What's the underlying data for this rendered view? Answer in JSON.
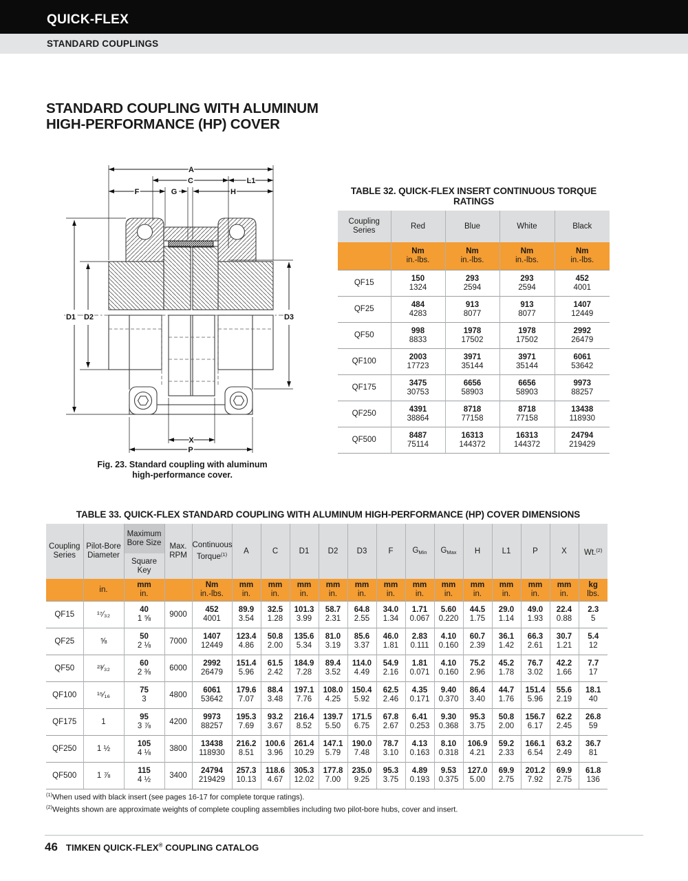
{
  "page": {
    "brand_bar": "QUICK-FLEX",
    "section_bar": "STANDARD COUPLINGS",
    "title_line1": "STANDARD COUPLING WITH ALUMINUM",
    "title_line2": "HIGH-PERFORMANCE (HP) COVER",
    "footnote1_sup": "(1)",
    "footnote1": "When used with black insert (see pages 16-17 for complete torque ratings).",
    "footnote2_sup": "(2)",
    "footnote2": "Weights shown are approximate weights of complete coupling assemblies including two pilot-bore hubs, cover and insert.",
    "footer": {
      "page_number": "46",
      "brand": "TIMKEN QUICK-FLEX",
      "reg": "®",
      "rest": " COUPLING CATALOG"
    }
  },
  "figure": {
    "caption_line1": "Fig. 23. Standard coupling with aluminum",
    "caption_line2": "high-performance cover.",
    "labels": {
      "a": "A",
      "c": "C",
      "l1": "L1",
      "f": "F",
      "g": "G",
      "h": "H",
      "d1": "D1",
      "d2": "D2",
      "d3": "D3",
      "x": "X",
      "p": "P"
    }
  },
  "table32": {
    "title": "TABLE 32. QUICK-FLEX INSERT CONTINUOUS TORQUE RATINGS",
    "col0_header": "Coupling Series",
    "columns": [
      "Red",
      "Blue",
      "White",
      "Black"
    ],
    "unit_top": "Nm",
    "unit_bottom": "in.-lbs.",
    "rows": [
      {
        "series": "QF15",
        "values": [
          [
            "150",
            "1324"
          ],
          [
            "293",
            "2594"
          ],
          [
            "293",
            "2594"
          ],
          [
            "452",
            "4001"
          ]
        ]
      },
      {
        "series": "QF25",
        "values": [
          [
            "484",
            "4283"
          ],
          [
            "913",
            "8077"
          ],
          [
            "913",
            "8077"
          ],
          [
            "1407",
            "12449"
          ]
        ]
      },
      {
        "series": "QF50",
        "values": [
          [
            "998",
            "8833"
          ],
          [
            "1978",
            "17502"
          ],
          [
            "1978",
            "17502"
          ],
          [
            "2992",
            "26479"
          ]
        ]
      },
      {
        "series": "QF100",
        "values": [
          [
            "2003",
            "17723"
          ],
          [
            "3971",
            "35144"
          ],
          [
            "3971",
            "35144"
          ],
          [
            "6061",
            "53642"
          ]
        ]
      },
      {
        "series": "QF175",
        "values": [
          [
            "3475",
            "30753"
          ],
          [
            "6656",
            "58903"
          ],
          [
            "6656",
            "58903"
          ],
          [
            "9973",
            "88257"
          ]
        ]
      },
      {
        "series": "QF250",
        "values": [
          [
            "4391",
            "38864"
          ],
          [
            "8718",
            "77158"
          ],
          [
            "8718",
            "77158"
          ],
          [
            "13438",
            "118930"
          ]
        ]
      },
      {
        "series": "QF500",
        "values": [
          [
            "8487",
            "75114"
          ],
          [
            "16313",
            "144372"
          ],
          [
            "16313",
            "144372"
          ],
          [
            "24794",
            "219429"
          ]
        ]
      }
    ]
  },
  "table33": {
    "title": "TABLE 33. QUICK-FLEX STANDARD COUPLING WITH ALUMINUM HIGH-PERFORMANCE (HP) COVER DIMENSIONS",
    "headers": {
      "series": "Coupling Series",
      "pilot": "Pilot-Bore Diameter",
      "bore_top": "Maximum Bore Size",
      "bore_bot": "Square Key",
      "rpm": "Max. RPM",
      "torque": "Continuous Torque",
      "torque_sup": "(1)",
      "a": "A",
      "c": "C",
      "d1": "D1",
      "d2": "D2",
      "d3": "D3",
      "f": "F",
      "gmin": {
        "b": "G",
        "s": "Min"
      },
      "gmax": {
        "b": "G",
        "s": "Max"
      },
      "h": "H",
      "l1": "L1",
      "p": "P",
      "x": "X",
      "wt": "Wt.",
      "wt_sup": "(2)"
    },
    "units": {
      "pilot": "in.",
      "bore_top": "mm",
      "bore_bot": "in.",
      "torque_top": "Nm",
      "torque_bot": "in.-lbs.",
      "dim_top": "mm",
      "dim_bot": "in.",
      "wt_top": "kg",
      "wt_bot": "lbs."
    },
    "rows": [
      {
        "series": "QF15",
        "pilot": "¹⁷⁄₃₂",
        "bore": [
          "40",
          "1 ⅝"
        ],
        "rpm": "9000",
        "torque": [
          "452",
          "4001"
        ],
        "dims": [
          [
            "89.9",
            "3.54"
          ],
          [
            "32.5",
            "1.28"
          ],
          [
            "101.3",
            "3.99"
          ],
          [
            "58.7",
            "2.31"
          ],
          [
            "64.8",
            "2.55"
          ],
          [
            "34.0",
            "1.34"
          ],
          [
            "1.71",
            "0.067"
          ],
          [
            "5.60",
            "0.220"
          ],
          [
            "44.5",
            "1.75"
          ],
          [
            "29.0",
            "1.14"
          ],
          [
            "49.0",
            "1.93"
          ],
          [
            "22.4",
            "0.88"
          ]
        ],
        "wt": [
          "2.3",
          "5"
        ]
      },
      {
        "series": "QF25",
        "pilot": "⅝",
        "bore": [
          "50",
          "2 ⅛"
        ],
        "rpm": "7000",
        "torque": [
          "1407",
          "12449"
        ],
        "dims": [
          [
            "123.4",
            "4.86"
          ],
          [
            "50.8",
            "2.00"
          ],
          [
            "135.6",
            "5.34"
          ],
          [
            "81.0",
            "3.19"
          ],
          [
            "85.6",
            "3.37"
          ],
          [
            "46.0",
            "1.81"
          ],
          [
            "2.83",
            "0.111"
          ],
          [
            "4.10",
            "0.160"
          ],
          [
            "60.7",
            "2.39"
          ],
          [
            "36.1",
            "1.42"
          ],
          [
            "66.3",
            "2.61"
          ],
          [
            "30.7",
            "1.21"
          ]
        ],
        "wt": [
          "5.4",
          "12"
        ]
      },
      {
        "series": "QF50",
        "pilot": "²³⁄₃₂",
        "bore": [
          "60",
          "2 ⅜"
        ],
        "rpm": "6000",
        "torque": [
          "2992",
          "26479"
        ],
        "dims": [
          [
            "151.4",
            "5.96"
          ],
          [
            "61.5",
            "2.42"
          ],
          [
            "184.9",
            "7.28"
          ],
          [
            "89.4",
            "3.52"
          ],
          [
            "114.0",
            "4.49"
          ],
          [
            "54.9",
            "2.16"
          ],
          [
            "1.81",
            "0.071"
          ],
          [
            "4.10",
            "0.160"
          ],
          [
            "75.2",
            "2.96"
          ],
          [
            "45.2",
            "1.78"
          ],
          [
            "76.7",
            "3.02"
          ],
          [
            "42.2",
            "1.66"
          ]
        ],
        "wt": [
          "7.7",
          "17"
        ]
      },
      {
        "series": "QF100",
        "pilot": "¹⁵⁄₁₆",
        "bore": [
          "75",
          "3"
        ],
        "rpm": "4800",
        "torque": [
          "6061",
          "53642"
        ],
        "dims": [
          [
            "179.6",
            "7.07"
          ],
          [
            "88.4",
            "3.48"
          ],
          [
            "197.1",
            "7.76"
          ],
          [
            "108.0",
            "4.25"
          ],
          [
            "150.4",
            "5.92"
          ],
          [
            "62.5",
            "2.46"
          ],
          [
            "4.35",
            "0.171"
          ],
          [
            "9.40",
            "0.370"
          ],
          [
            "86.4",
            "3.40"
          ],
          [
            "44.7",
            "1.76"
          ],
          [
            "151.4",
            "5.96"
          ],
          [
            "55.6",
            "2.19"
          ]
        ],
        "wt": [
          "18.1",
          "40"
        ]
      },
      {
        "series": "QF175",
        "pilot": "1",
        "bore": [
          "95",
          "3 ⅞"
        ],
        "rpm": "4200",
        "torque": [
          "9973",
          "88257"
        ],
        "dims": [
          [
            "195.3",
            "7.69"
          ],
          [
            "93.2",
            "3.67"
          ],
          [
            "216.4",
            "8.52"
          ],
          [
            "139.7",
            "5.50"
          ],
          [
            "171.5",
            "6.75"
          ],
          [
            "67.8",
            "2.67"
          ],
          [
            "6.41",
            "0.253"
          ],
          [
            "9.30",
            "0.368"
          ],
          [
            "95.3",
            "3.75"
          ],
          [
            "50.8",
            "2.00"
          ],
          [
            "156.7",
            "6.17"
          ],
          [
            "62.2",
            "2.45"
          ]
        ],
        "wt": [
          "26.8",
          "59"
        ]
      },
      {
        "series": "QF250",
        "pilot": "1 ½",
        "bore": [
          "105",
          "4 ⅛"
        ],
        "rpm": "3800",
        "torque": [
          "13438",
          "118930"
        ],
        "dims": [
          [
            "216.2",
            "8.51"
          ],
          [
            "100.6",
            "3.96"
          ],
          [
            "261.4",
            "10.29"
          ],
          [
            "147.1",
            "5.79"
          ],
          [
            "190.0",
            "7.48"
          ],
          [
            "78.7",
            "3.10"
          ],
          [
            "4.13",
            "0.163"
          ],
          [
            "8.10",
            "0.318"
          ],
          [
            "106.9",
            "4.21"
          ],
          [
            "59.2",
            "2.33"
          ],
          [
            "166.1",
            "6.54"
          ],
          [
            "63.2",
            "2.49"
          ]
        ],
        "wt": [
          "36.7",
          "81"
        ]
      },
      {
        "series": "QF500",
        "pilot": "1 ⅞",
        "bore": [
          "115",
          "4 ½"
        ],
        "rpm": "3400",
        "torque": [
          "24794",
          "219429"
        ],
        "dims": [
          [
            "257.3",
            "10.13"
          ],
          [
            "118.6",
            "4.67"
          ],
          [
            "305.3",
            "12.02"
          ],
          [
            "177.8",
            "7.00"
          ],
          [
            "235.0",
            "9.25"
          ],
          [
            "95.3",
            "3.75"
          ],
          [
            "4.89",
            "0.193"
          ],
          [
            "9.53",
            "0.375"
          ],
          [
            "127.0",
            "5.00"
          ],
          [
            "69.9",
            "2.75"
          ],
          [
            "201.2",
            "7.92"
          ],
          [
            "69.9",
            "2.75"
          ]
        ],
        "wt": [
          "61.8",
          "136"
        ]
      }
    ]
  },
  "colors": {
    "accent_orange": "#f49d33",
    "header_gray": "#dcddde",
    "bore_gray": "#c7c8c9",
    "bar_black": "#0b0b0b",
    "bar_gray": "#e3e4e5"
  }
}
